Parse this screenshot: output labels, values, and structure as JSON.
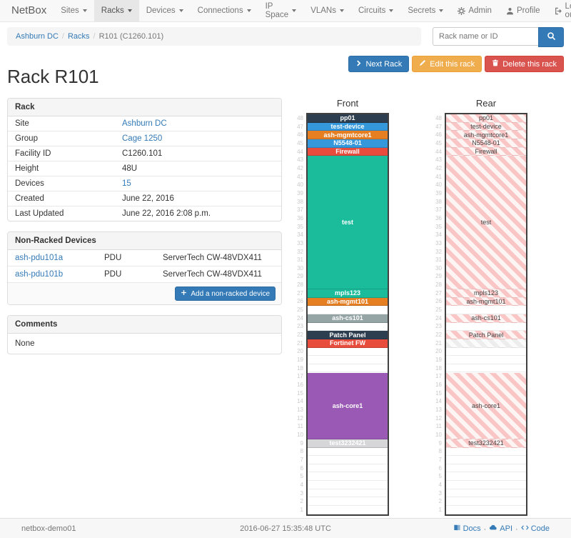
{
  "navbar": {
    "brand": "NetBox",
    "items": [
      {
        "label": "Sites"
      },
      {
        "label": "Racks",
        "active": true
      },
      {
        "label": "Devices"
      },
      {
        "label": "Connections"
      },
      {
        "label": "IP Space"
      },
      {
        "label": "VLANs"
      },
      {
        "label": "Circuits"
      },
      {
        "label": "Secrets"
      }
    ],
    "right": [
      {
        "label": "Admin",
        "icon": "gear-icon"
      },
      {
        "label": "Profile",
        "icon": "user-icon"
      },
      {
        "label": "Log out",
        "icon": "log-out-icon"
      }
    ]
  },
  "breadcrumb": {
    "separator": "/",
    "site": "Ashburn DC",
    "section": "Racks",
    "current": "R101 (C1260.101)"
  },
  "search": {
    "placeholder": "Rack name or ID"
  },
  "page": {
    "title": "Rack R101"
  },
  "actions": {
    "next_label": "Next Rack",
    "edit_label": "Edit this rack",
    "delete_label": "Delete this rack"
  },
  "rack_panel": {
    "title": "Rack",
    "rows": [
      {
        "label": "Site",
        "value": "Ashburn DC",
        "is_link": true
      },
      {
        "label": "Group",
        "value": "Cage 1250",
        "is_link": true
      },
      {
        "label": "Facility ID",
        "value": "C1260.101"
      },
      {
        "label": "Height",
        "value": "48U"
      },
      {
        "label": "Devices",
        "value": "15",
        "is_link": true
      },
      {
        "label": "Created",
        "value": "June 22, 2016"
      },
      {
        "label": "Last Updated",
        "value": "June 22, 2016 2:08 p.m."
      }
    ]
  },
  "nonracked_panel": {
    "title": "Non-Racked Devices",
    "devices": [
      {
        "name": "ash-pdu101a",
        "type": "PDU",
        "model": "ServerTech CW-48VDX411"
      },
      {
        "name": "ash-pdu101b",
        "type": "PDU",
        "model": "ServerTech CW-48VDX411"
      }
    ],
    "add_label": "Add a non-racked device"
  },
  "comments_panel": {
    "title": "Comments",
    "body": "None"
  },
  "elevations": {
    "front_title": "Front",
    "rear_title": "Rear",
    "top_unit": 48,
    "bottom_unit": 1,
    "rear_text_color": "#444444",
    "hatch": {
      "pink": "#fac5c5",
      "pink_bg": "#fdf4f4",
      "gray": "#ededed",
      "gray_bg": "#fbfbfb"
    },
    "devices": [
      {
        "u": 48,
        "h": 1,
        "label": "pp01",
        "color": "#2c3e50"
      },
      {
        "u": 47,
        "h": 1,
        "label": "test-device",
        "color": "#3498db"
      },
      {
        "u": 46,
        "h": 1,
        "label": "ash-mgmtcore1",
        "color": "#e67e22"
      },
      {
        "u": 45,
        "h": 1,
        "label": "N5548-01",
        "color": "#3498db"
      },
      {
        "u": 44,
        "h": 1,
        "label": "Firewall",
        "color": "#e74c3c"
      },
      {
        "u": 43,
        "h": 16,
        "label": "test",
        "color": "#1abc9c"
      },
      {
        "u": 27,
        "h": 1,
        "label": "mpls123",
        "color": "#1abc9c"
      },
      {
        "u": 26,
        "h": 1,
        "label": "ash-mgmt101",
        "color": "#e67e22"
      },
      {
        "u": 24,
        "h": 1,
        "label": "ash-cs101",
        "color": "#95a5a6"
      },
      {
        "u": 22,
        "h": 1,
        "label": "Patch Panel",
        "color": "#2c3e50"
      },
      {
        "u": 21,
        "h": 1,
        "label": "Fortinet FW",
        "color": "#e74c3c",
        "rear_variant": "gray",
        "rear_label_hidden": true
      },
      {
        "u": 17,
        "h": 8,
        "label": "ash-core1",
        "color": "#9b59b6"
      },
      {
        "u": 9,
        "h": 1,
        "label": "test3232421",
        "color": "#d6d6d9"
      }
    ]
  },
  "footer": {
    "hostname": "netbox-demo01",
    "timestamp": "2016-06-27 15:35:48 UTC",
    "links": [
      {
        "label": "Docs",
        "icon": "book-icon"
      },
      {
        "label": "API",
        "icon": "cloud-icon"
      },
      {
        "label": "Code",
        "icon": "code-icon"
      }
    ]
  }
}
